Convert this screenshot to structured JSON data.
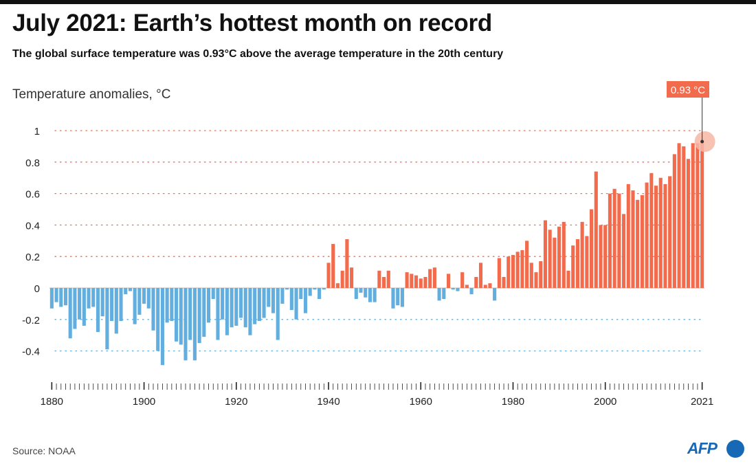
{
  "header": {
    "title": "July 2021: Earth’s hottest month on record",
    "subtitle": "The global surface temperature was 0.93°C above the average temperature in the 20th century"
  },
  "footer": {
    "source": "Source: NOAA",
    "logo": "AFP"
  },
  "colors": {
    "positive": "#f26b4c",
    "negative": "#62aede",
    "highlight": "#f7b7a6",
    "callout": "#f26b4c"
  },
  "chart_data": {
    "type": "bar",
    "ylabel": "Temperature anomalies, °C",
    "ylim": [
      -0.5,
      1.05
    ],
    "yticks": [
      1,
      0.8,
      0.6,
      0.4,
      0.2,
      0,
      -0.2,
      -0.4
    ],
    "ytick_labels": [
      "1",
      "0.8",
      "0.6",
      "0.4",
      "0.2",
      "0",
      "-0.2",
      "-0.4"
    ],
    "xlim": [
      1880,
      2021
    ],
    "xticks": [
      1880,
      1900,
      1920,
      1940,
      1960,
      1980,
      2000,
      2021
    ],
    "xtick_labels": [
      "1880",
      "1900",
      "1920",
      "1940",
      "1960",
      "1980",
      "2000",
      "2021"
    ],
    "grid": true,
    "annotation": {
      "year": 2021,
      "value": 0.93,
      "label": "0.93 °C"
    },
    "x_start": 1880,
    "values": [
      -0.13,
      -0.09,
      -0.12,
      -0.11,
      -0.32,
      -0.26,
      -0.2,
      -0.24,
      -0.13,
      -0.12,
      -0.28,
      -0.18,
      -0.39,
      -0.21,
      -0.29,
      -0.21,
      -0.04,
      -0.02,
      -0.23,
      -0.17,
      -0.1,
      -0.13,
      -0.27,
      -0.4,
      -0.49,
      -0.22,
      -0.21,
      -0.34,
      -0.36,
      -0.46,
      -0.33,
      -0.46,
      -0.35,
      -0.31,
      -0.22,
      -0.07,
      -0.33,
      -0.2,
      -0.3,
      -0.25,
      -0.24,
      -0.19,
      -0.25,
      -0.3,
      -0.23,
      -0.21,
      -0.19,
      -0.12,
      -0.16,
      -0.33,
      -0.1,
      -0.01,
      -0.14,
      -0.2,
      -0.07,
      -0.16,
      -0.05,
      -0.01,
      -0.07,
      -0.01,
      0.16,
      0.28,
      0.03,
      0.11,
      0.31,
      0.13,
      -0.07,
      -0.03,
      -0.06,
      -0.09,
      -0.09,
      0.11,
      0.07,
      0.11,
      -0.13,
      -0.11,
      -0.12,
      0.1,
      0.09,
      0.08,
      0.06,
      0.07,
      0.12,
      0.13,
      -0.08,
      -0.07,
      0.09,
      -0.01,
      -0.02,
      0.1,
      0.02,
      -0.04,
      0.07,
      0.16,
      0.02,
      0.03,
      -0.08,
      0.19,
      0.07,
      0.2,
      0.21,
      0.23,
      0.24,
      0.3,
      0.16,
      0.1,
      0.17,
      0.43,
      0.37,
      0.32,
      0.39,
      0.42,
      0.11,
      0.27,
      0.31,
      0.42,
      0.33,
      0.5,
      0.74,
      0.4,
      0.4,
      0.6,
      0.63,
      0.6,
      0.47,
      0.66,
      0.62,
      0.56,
      0.59,
      0.67,
      0.73,
      0.65,
      0.7,
      0.66,
      0.71,
      0.85,
      0.92,
      0.9,
      0.82,
      0.92,
      0.92,
      0.93
    ]
  }
}
